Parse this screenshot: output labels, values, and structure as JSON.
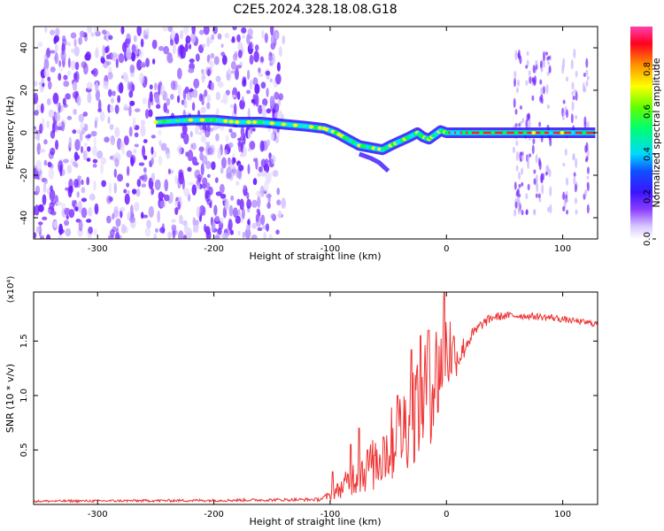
{
  "title": "C2E5.2024.328.18.08.G18",
  "chart_data": [
    {
      "type": "heatmap",
      "xlabel": "Height of straight line (km)",
      "ylabel": "Frequency (Hz)",
      "xlim": [
        -355,
        130
      ],
      "ylim": [
        -50,
        50
      ],
      "x_ticks": [
        -300,
        -200,
        -100,
        0,
        100
      ],
      "x_tick_labels": [
        "-300",
        "-200",
        "-100",
        "0",
        "100"
      ],
      "y_ticks": [
        -40,
        -20,
        0,
        20,
        40
      ],
      "y_tick_labels": [
        "-40",
        "-20",
        "0",
        "20",
        "40"
      ],
      "grid": false,
      "colorbar": {
        "label": "Normalized spectral amplitude",
        "range": [
          0,
          1
        ],
        "ticks": [
          0.0,
          0.2,
          0.4,
          0.6,
          0.8
        ],
        "tick_labels": [
          "0.0",
          "0.2",
          "0.4",
          "0.6",
          "0.8"
        ],
        "colormap": [
          "#ffffff",
          "#c9b3ff",
          "#7b2cff",
          "#2020ff",
          "#00e6ff",
          "#00ff40",
          "#ffff00",
          "#ff8000",
          "#ff0000",
          "#ff40c0"
        ]
      },
      "noise_region_x": [
        -355,
        -140
      ],
      "ridge": [
        [
          -250,
          5
        ],
        [
          -220,
          6
        ],
        [
          -200,
          6
        ],
        [
          -180,
          5
        ],
        [
          -160,
          5
        ],
        [
          -140,
          4
        ],
        [
          -120,
          3
        ],
        [
          -105,
          2
        ],
        [
          -95,
          0
        ],
        [
          -85,
          -3
        ],
        [
          -75,
          -6
        ],
        [
          -65,
          -7
        ],
        [
          -55,
          -8
        ],
        [
          -48,
          -6
        ],
        [
          -40,
          -4
        ],
        [
          -32,
          -2
        ],
        [
          -25,
          0
        ],
        [
          -20,
          -2
        ],
        [
          -15,
          -3
        ],
        [
          -10,
          -1
        ],
        [
          -5,
          1
        ],
        [
          0,
          0
        ],
        [
          20,
          0
        ],
        [
          60,
          0
        ],
        [
          90,
          0
        ],
        [
          128,
          0
        ]
      ],
      "branch": [
        [
          -75,
          -10
        ],
        [
          -65,
          -12
        ],
        [
          -58,
          -14
        ],
        [
          -50,
          -18
        ]
      ],
      "burst_columns_x": [
        60,
        64,
        70,
        76,
        82,
        88,
        102,
        110,
        120
      ]
    },
    {
      "type": "line",
      "xlabel": "Height of straight line (km)",
      "ylabel": "SNR (10 * v/v)",
      "multiplier_label": "(x10⁴)",
      "xlim": [
        -355,
        130
      ],
      "ylim": [
        0,
        1.95
      ],
      "x_ticks": [
        -300,
        -200,
        -100,
        0,
        100
      ],
      "x_tick_labels": [
        "-300",
        "-200",
        "-100",
        "0",
        "100"
      ],
      "y_ticks": [
        0.5,
        1.0,
        1.5
      ],
      "y_tick_labels": [
        "0.5",
        "1.0",
        "1.5"
      ],
      "grid": false,
      "series": [
        {
          "color": "#ee3333",
          "envelope_x": [
            -355,
            -200,
            -110,
            -100,
            -90,
            -80,
            -70,
            -60,
            -50,
            -40,
            -30,
            -20,
            -10,
            0,
            10,
            20,
            30,
            40,
            55,
            70,
            90,
            110,
            128
          ],
          "envelope_low": [
            0.02,
            0.025,
            0.03,
            0.04,
            0.06,
            0.08,
            0.1,
            0.12,
            0.18,
            0.25,
            0.35,
            0.45,
            0.6,
            0.95,
            1.2,
            1.45,
            1.6,
            1.68,
            1.7,
            1.7,
            1.68,
            1.66,
            1.63
          ],
          "envelope_high": [
            0.04,
            0.05,
            0.06,
            0.12,
            0.25,
            0.42,
            0.55,
            0.65,
            0.85,
            1.05,
            1.3,
            1.6,
            1.7,
            1.95,
            1.5,
            1.6,
            1.7,
            1.76,
            1.77,
            1.76,
            1.75,
            1.71,
            1.69
          ],
          "peaks": [
            [
              -98,
              0.3
            ],
            [
              -82,
              0.55
            ],
            [
              -75,
              0.7
            ],
            [
              -68,
              0.5
            ],
            [
              -62,
              0.45
            ],
            [
              -54,
              0.62
            ],
            [
              -42,
              1.0
            ],
            [
              -30,
              1.42
            ],
            [
              -22,
              1.55
            ],
            [
              -15,
              1.6
            ],
            [
              -2,
              1.95
            ],
            [
              8,
              1.3
            ]
          ]
        }
      ]
    }
  ]
}
